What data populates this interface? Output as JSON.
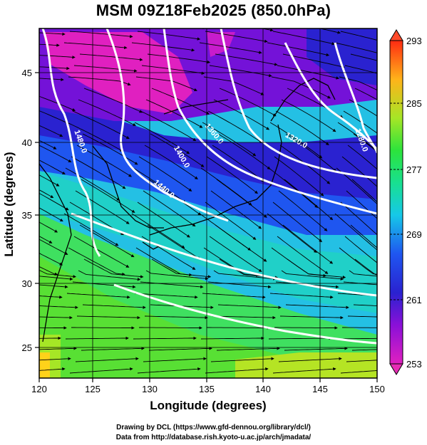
{
  "title": "MSM 09Z18Feb2025 (850.0hPa)",
  "map": {
    "xlabel": "Longitude (degrees)",
    "ylabel": "Latitude  (degrees)",
    "x_ticks": [
      "120",
      "125",
      "130",
      "135",
      "140",
      "145",
      "150"
    ],
    "y_ticks": [
      "25",
      "30",
      "35",
      "40",
      "45"
    ],
    "lon_range": [
      120,
      150
    ],
    "lat_range": [
      22.4,
      47.6
    ],
    "contour_labels": [
      "1480.0",
      "1400.0",
      "1440.0",
      "1360.0",
      "1320.0",
      "1280.0"
    ]
  },
  "colorbar": {
    "ticks": [
      "293",
      "285",
      "277",
      "269",
      "261",
      "253"
    ],
    "range": [
      253,
      293
    ],
    "colors": [
      "#e020c0",
      "#8a10d8",
      "#2a22d0",
      "#1f56f0",
      "#16c8e8",
      "#18e090",
      "#2ce33c",
      "#a6e626",
      "#ffb31a",
      "#ff2b12"
    ]
  },
  "credits": {
    "line1": "Drawing by DCL (https://www.gfd-dennou.org/library/dcl/)",
    "line2": "Data from http://database.rish.kyoto-u.ac.jp/arch/jmadata/"
  }
}
